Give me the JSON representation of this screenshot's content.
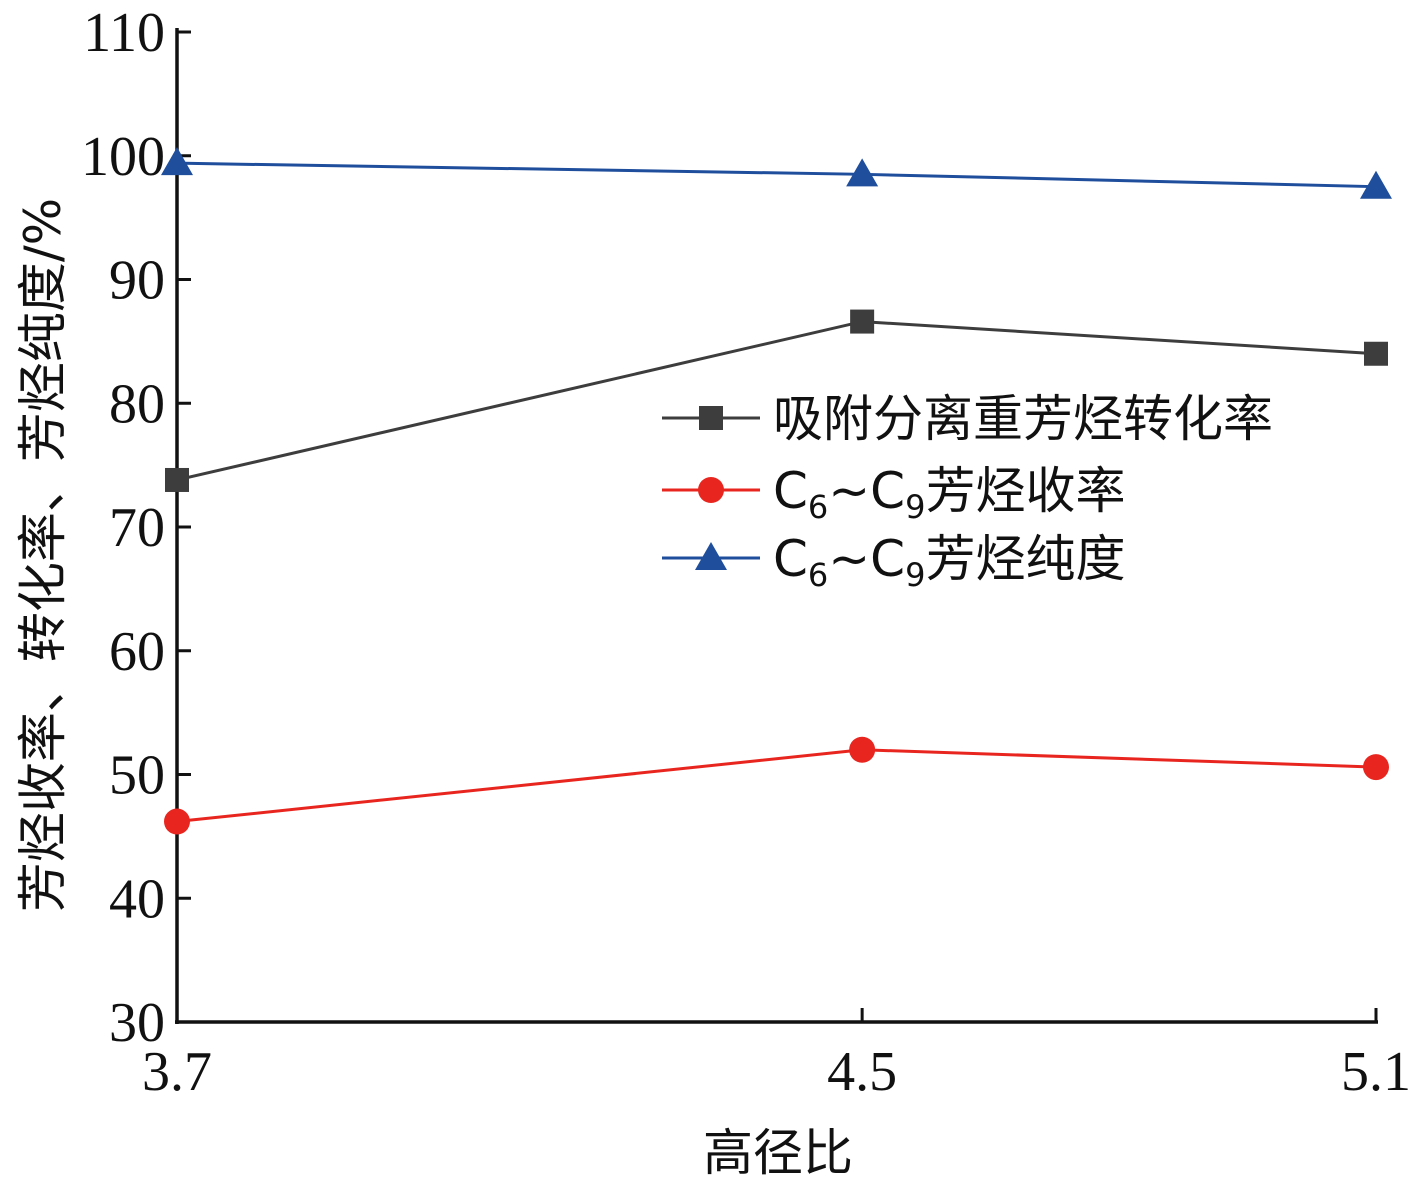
{
  "chart_data": {
    "type": "line",
    "xlabel": "高径比",
    "ylabel": "芳烃收率、转化率、芳烃纯度/%",
    "x": [
      3.7,
      4.5,
      5.1
    ],
    "x_tick_labels": [
      "3.7",
      "4.5",
      "5.1"
    ],
    "ylim": [
      30,
      110
    ],
    "y_ticks": [
      30,
      40,
      50,
      60,
      70,
      80,
      90,
      100,
      110
    ],
    "grid": false,
    "legend_position": "right",
    "series": [
      {
        "name": "吸附分离重芳烃转化率",
        "name_parts": [
          "吸附分离重芳烃转化率"
        ],
        "color": "#3d3d3d",
        "marker": "square",
        "values": [
          73.8,
          86.6,
          84.0
        ]
      },
      {
        "name": "C6~C9芳烃收率",
        "name_parts": [
          "C",
          "6",
          "~C",
          "9",
          "芳烃收率"
        ],
        "color": "#e8261f",
        "marker": "circle",
        "values": [
          46.2,
          52.0,
          50.6
        ]
      },
      {
        "name": "C6~C9芳烃纯度",
        "name_parts": [
          "C",
          "6",
          "~C",
          "9",
          "芳烃纯度"
        ],
        "color": "#1f4e9c",
        "marker": "triangle",
        "values": [
          99.4,
          98.5,
          97.5
        ]
      }
    ]
  }
}
